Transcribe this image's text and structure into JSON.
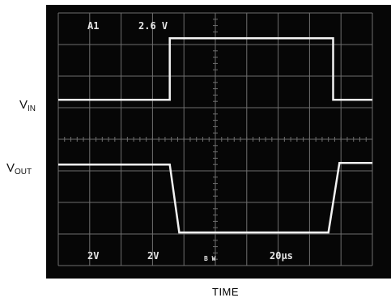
{
  "chart_data": {
    "type": "line",
    "instrument": "oscilloscope",
    "xlabel": "TIME",
    "timebase": "20µs",
    "screen_readouts": {
      "channel": "A1",
      "trigger_level": "2.6 V",
      "ch1_scale": "2V",
      "ch2_scale": "2V",
      "bw_marker": "B W",
      "timebase": "20µs"
    },
    "grid": true,
    "divisions": {
      "x": 10,
      "y": 8
    },
    "xlim": [
      0,
      10
    ],
    "ylim": [
      0,
      8
    ],
    "series": [
      {
        "name": "V_IN",
        "label_main": "V",
        "label_sub": "IN",
        "color": "#f2f2f2",
        "x": [
          0,
          3.55,
          3.55,
          8.75,
          8.75,
          10
        ],
        "y": [
          5.25,
          5.25,
          7.2,
          7.2,
          5.25,
          5.25
        ]
      },
      {
        "name": "V_OUT",
        "label_main": "V",
        "label_sub": "OUT",
        "color": "#f2f2f2",
        "x": [
          0,
          3.55,
          3.85,
          8.6,
          8.95,
          10
        ],
        "y": [
          3.2,
          3.2,
          1.05,
          1.05,
          3.25,
          3.25
        ]
      }
    ]
  },
  "colors": {
    "screen_bg": "#060606",
    "grid": "#6f6f6f",
    "trace": "#f2f2f2",
    "readout": "#e6e6e6"
  }
}
